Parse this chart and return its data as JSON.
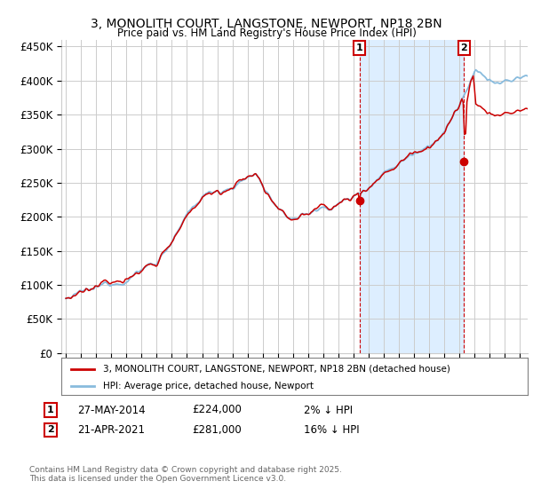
{
  "title": "3, MONOLITH COURT, LANGSTONE, NEWPORT, NP18 2BN",
  "subtitle": "Price paid vs. HM Land Registry's House Price Index (HPI)",
  "ylabel_ticks": [
    "£0",
    "£50K",
    "£100K",
    "£150K",
    "£200K",
    "£250K",
    "£300K",
    "£350K",
    "£400K",
    "£450K"
  ],
  "ytick_values": [
    0,
    50000,
    100000,
    150000,
    200000,
    250000,
    300000,
    350000,
    400000,
    450000
  ],
  "ylim": [
    0,
    460000
  ],
  "xlim_start": 1994.7,
  "xlim_end": 2025.5,
  "purchase1_x": 2014.4,
  "purchase1_y": 224000,
  "purchase1_date": "27-MAY-2014",
  "purchase1_price": "£224,000",
  "purchase1_pct": "2% ↓ HPI",
  "purchase2_x": 2021.3,
  "purchase2_y": 281000,
  "purchase2_date": "21-APR-2021",
  "purchase2_price": "£281,000",
  "purchase2_pct": "16% ↓ HPI",
  "legend_property": "3, MONOLITH COURT, LANGSTONE, NEWPORT, NP18 2BN (detached house)",
  "legend_hpi": "HPI: Average price, detached house, Newport",
  "footer": "Contains HM Land Registry data © Crown copyright and database right 2025.\nThis data is licensed under the Open Government Licence v3.0.",
  "property_color": "#cc0000",
  "hpi_color": "#88bbdd",
  "shade_color": "#ddeeff",
  "background_color": "#ffffff",
  "grid_color": "#cccccc",
  "annotation_box_color": "#cc0000"
}
